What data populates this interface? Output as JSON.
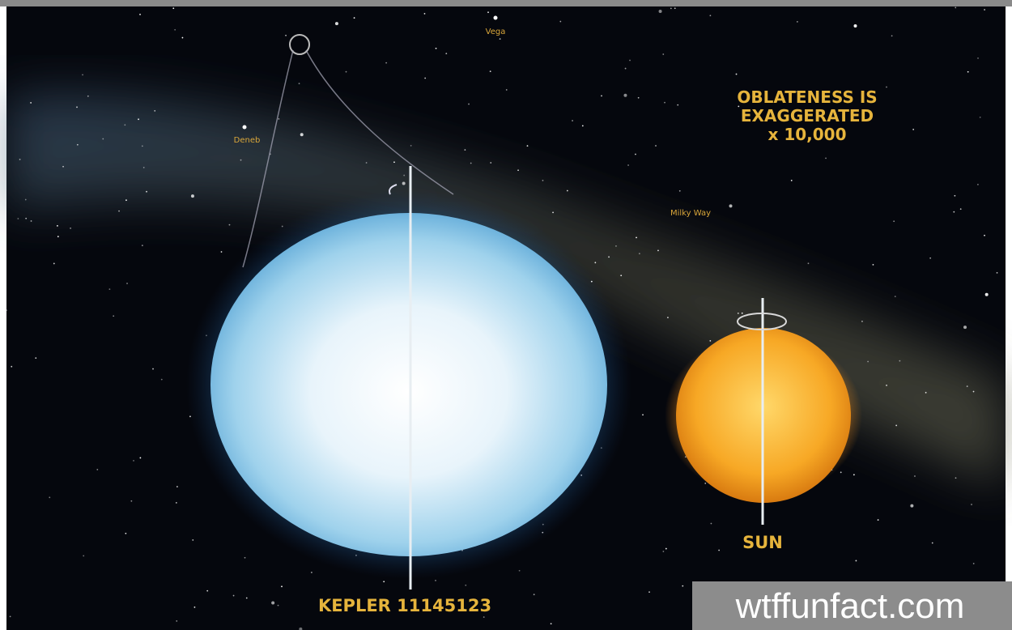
{
  "annotations": {
    "vega": "Vega",
    "deneb": "Deneb",
    "milky_way": "Milky Way",
    "oblateness": [
      "OBLATENESS IS",
      "EXAGGERATED",
      "x 10,000"
    ]
  },
  "objects": {
    "kepler": "KEPLER 11145123",
    "sun": "SUN"
  },
  "watermark": "wtffunfact.com"
}
